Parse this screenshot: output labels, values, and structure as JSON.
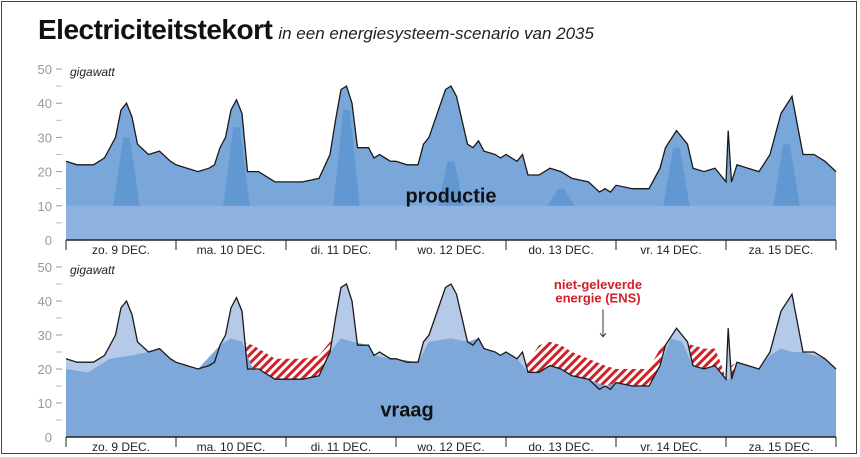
{
  "title": "Electriciteitstekort",
  "subtitle": "in een energiesysteem-scenario van 2035",
  "chart_data": [
    {
      "type": "area",
      "label": "productie",
      "ylabel": "gigawatt",
      "ylim": [
        0,
        50
      ],
      "yticks": [
        0,
        10,
        20,
        30,
        40,
        50
      ],
      "xlim": [
        0,
        7
      ],
      "x_unit": "days",
      "categories": [
        "zo. 9 DEC.",
        "ma. 10 DEC.",
        "di. 11 DEC.",
        "wo. 12 DEC.",
        "do. 13 DEC.",
        "vr. 14 DEC.",
        "za. 15 DEC."
      ],
      "base_level": 10,
      "solar_peaks": [
        {
          "x": 0.55,
          "value": 30
        },
        {
          "x": 1.55,
          "value": 33
        },
        {
          "x": 2.55,
          "value": 38
        },
        {
          "x": 3.5,
          "value": 23
        },
        {
          "x": 4.5,
          "value": 15
        },
        {
          "x": 5.55,
          "value": 27
        },
        {
          "x": 6.55,
          "value": 28
        }
      ],
      "production": [
        [
          0,
          23
        ],
        [
          0.1,
          22
        ],
        [
          0.25,
          22
        ],
        [
          0.35,
          24
        ],
        [
          0.45,
          30
        ],
        [
          0.5,
          38
        ],
        [
          0.55,
          40
        ],
        [
          0.6,
          36
        ],
        [
          0.65,
          28
        ],
        [
          0.75,
          25
        ],
        [
          0.85,
          26
        ],
        [
          0.95,
          23
        ],
        [
          1.0,
          22
        ],
        [
          1.1,
          21
        ],
        [
          1.2,
          20
        ],
        [
          1.3,
          21
        ],
        [
          1.35,
          22
        ],
        [
          1.4,
          27
        ],
        [
          1.45,
          30
        ],
        [
          1.5,
          38
        ],
        [
          1.55,
          41
        ],
        [
          1.6,
          37
        ],
        [
          1.65,
          20
        ],
        [
          1.75,
          20
        ],
        [
          1.85,
          18
        ],
        [
          1.9,
          17
        ],
        [
          1.95,
          17
        ],
        [
          2.0,
          17
        ],
        [
          2.15,
          17
        ],
        [
          2.3,
          18
        ],
        [
          2.4,
          25
        ],
        [
          2.45,
          35
        ],
        [
          2.5,
          44
        ],
        [
          2.55,
          45
        ],
        [
          2.6,
          40
        ],
        [
          2.65,
          27
        ],
        [
          2.75,
          27
        ],
        [
          2.8,
          24
        ],
        [
          2.85,
          25
        ],
        [
          2.95,
          23
        ],
        [
          3.0,
          23
        ],
        [
          3.1,
          22
        ],
        [
          3.2,
          22
        ],
        [
          3.25,
          28
        ],
        [
          3.3,
          30
        ],
        [
          3.45,
          44
        ],
        [
          3.5,
          45
        ],
        [
          3.55,
          42
        ],
        [
          3.65,
          28
        ],
        [
          3.7,
          27
        ],
        [
          3.75,
          29
        ],
        [
          3.8,
          26
        ],
        [
          3.9,
          25
        ],
        [
          3.95,
          24
        ],
        [
          4.0,
          25
        ],
        [
          4.1,
          23
        ],
        [
          4.15,
          25
        ],
        [
          4.2,
          19
        ],
        [
          4.3,
          19
        ],
        [
          4.4,
          21
        ],
        [
          4.5,
          20
        ],
        [
          4.6,
          18
        ],
        [
          4.75,
          17
        ],
        [
          4.85,
          14
        ],
        [
          4.9,
          15
        ],
        [
          4.95,
          14
        ],
        [
          5.0,
          16
        ],
        [
          5.15,
          15
        ],
        [
          5.3,
          15
        ],
        [
          5.4,
          21
        ],
        [
          5.45,
          27
        ],
        [
          5.55,
          32
        ],
        [
          5.65,
          28
        ],
        [
          5.7,
          21
        ],
        [
          5.8,
          20
        ],
        [
          5.9,
          21
        ],
        [
          5.95,
          19
        ],
        [
          6.0,
          17
        ],
        [
          6.02,
          32
        ],
        [
          6.05,
          17
        ],
        [
          6.1,
          22
        ],
        [
          6.2,
          21
        ],
        [
          6.3,
          20
        ],
        [
          6.4,
          25
        ],
        [
          6.5,
          37
        ],
        [
          6.6,
          42
        ],
        [
          6.7,
          25
        ],
        [
          6.8,
          25
        ],
        [
          6.9,
          23
        ],
        [
          7.0,
          20
        ]
      ]
    },
    {
      "type": "area",
      "label": "vraag",
      "ylabel": "gigawatt",
      "ylim": [
        0,
        50
      ],
      "yticks": [
        0,
        10,
        20,
        30,
        40,
        50
      ],
      "xlim": [
        0,
        7
      ],
      "categories": [
        "zo. 9 DEC.",
        "ma. 10 DEC.",
        "di. 11 DEC.",
        "wo. 12 DEC.",
        "do. 13 DEC.",
        "vr. 14 DEC.",
        "za. 15 DEC."
      ],
      "annotation": [
        "niet-geleverde",
        "energie (ENS)"
      ],
      "demand": [
        [
          0,
          20
        ],
        [
          0.2,
          19
        ],
        [
          0.4,
          23
        ],
        [
          0.6,
          24
        ],
        [
          0.75,
          25
        ],
        [
          0.85,
          26
        ],
        [
          0.95,
          23
        ],
        [
          1.0,
          22
        ],
        [
          1.2,
          20
        ],
        [
          1.4,
          27
        ],
        [
          1.5,
          29
        ],
        [
          1.6,
          28
        ],
        [
          1.7,
          27
        ],
        [
          1.8,
          25
        ],
        [
          1.9,
          23
        ],
        [
          2.0,
          23
        ],
        [
          2.15,
          23
        ],
        [
          2.3,
          24
        ],
        [
          2.4,
          28
        ],
        [
          2.5,
          29
        ],
        [
          2.6,
          28
        ],
        [
          2.75,
          27
        ],
        [
          2.8,
          24
        ],
        [
          2.95,
          23
        ],
        [
          3.0,
          23
        ],
        [
          3.2,
          22
        ],
        [
          3.3,
          28
        ],
        [
          3.5,
          29
        ],
        [
          3.65,
          28
        ],
        [
          3.75,
          29
        ],
        [
          3.8,
          26
        ],
        [
          3.95,
          24
        ],
        [
          4.0,
          25
        ],
        [
          4.1,
          23
        ],
        [
          4.2,
          22
        ],
        [
          4.3,
          27
        ],
        [
          4.4,
          28
        ],
        [
          4.5,
          27
        ],
        [
          4.6,
          25
        ],
        [
          4.75,
          23
        ],
        [
          4.9,
          21
        ],
        [
          5.0,
          20
        ],
        [
          5.1,
          20
        ],
        [
          5.3,
          20
        ],
        [
          5.4,
          26
        ],
        [
          5.5,
          29
        ],
        [
          5.6,
          28
        ],
        [
          5.7,
          27
        ],
        [
          5.8,
          26
        ],
        [
          5.9,
          26
        ],
        [
          5.95,
          22
        ],
        [
          6.0,
          17
        ],
        [
          6.05,
          21
        ],
        [
          6.1,
          22
        ],
        [
          6.2,
          21
        ],
        [
          6.3,
          20
        ],
        [
          6.4,
          24
        ],
        [
          6.5,
          26
        ],
        [
          6.6,
          25
        ],
        [
          6.7,
          25
        ],
        [
          6.9,
          23
        ],
        [
          7.0,
          20
        ]
      ]
    }
  ],
  "colors": {
    "base": "#8eb2df",
    "mid": "#7aa7da",
    "solar": "#5d95cf",
    "surplus": "#b5c9e8",
    "demand": "#7ea8d9",
    "ens": "#d0202a",
    "line": "#1a1a1a"
  }
}
